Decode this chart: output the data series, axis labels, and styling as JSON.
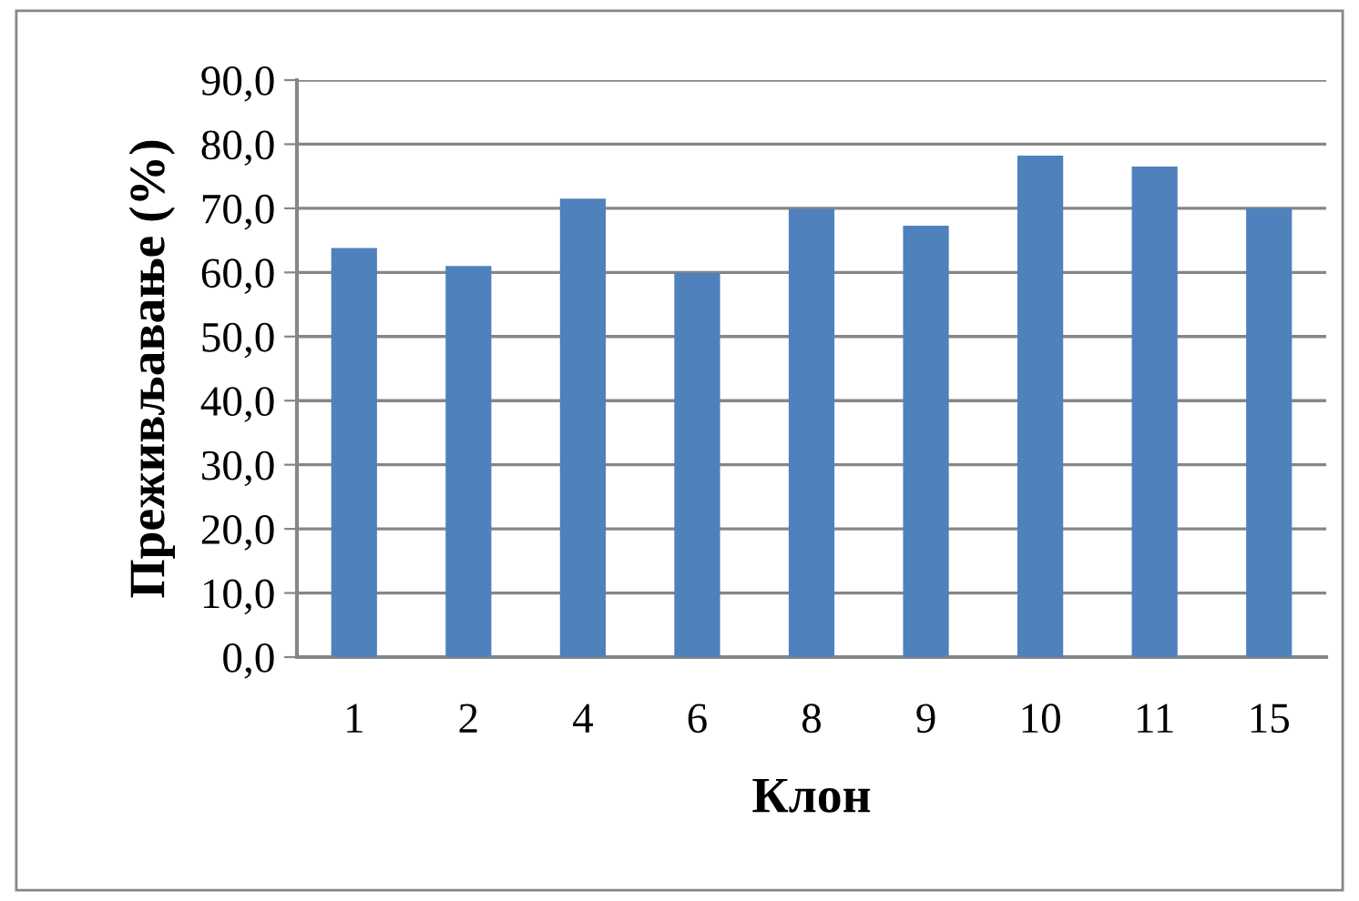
{
  "chart_data": {
    "type": "bar",
    "xlabel": "Клон",
    "ylabel": "Преживљавање (%)",
    "categories": [
      "1",
      "2",
      "4",
      "6",
      "8",
      "9",
      "10",
      "11",
      "15"
    ],
    "values": [
      63.8,
      61.0,
      71.5,
      59.9,
      69.9,
      67.3,
      78.2,
      76.5,
      70.0
    ],
    "color": "#4f81bd",
    "ylim": [
      0,
      90
    ],
    "yticks": [
      {
        "value": 0,
        "label": "0,0"
      },
      {
        "value": 10,
        "label": "10,0"
      },
      {
        "value": 20,
        "label": "20,0"
      },
      {
        "value": 30,
        "label": "30,0"
      },
      {
        "value": 40,
        "label": "40,0"
      },
      {
        "value": 50,
        "label": "50,0"
      },
      {
        "value": 60,
        "label": "60,0"
      },
      {
        "value": 70,
        "label": "70,0"
      },
      {
        "value": 80,
        "label": "80,0"
      },
      {
        "value": 90,
        "label": "90,0"
      }
    ],
    "grid": "y"
  }
}
